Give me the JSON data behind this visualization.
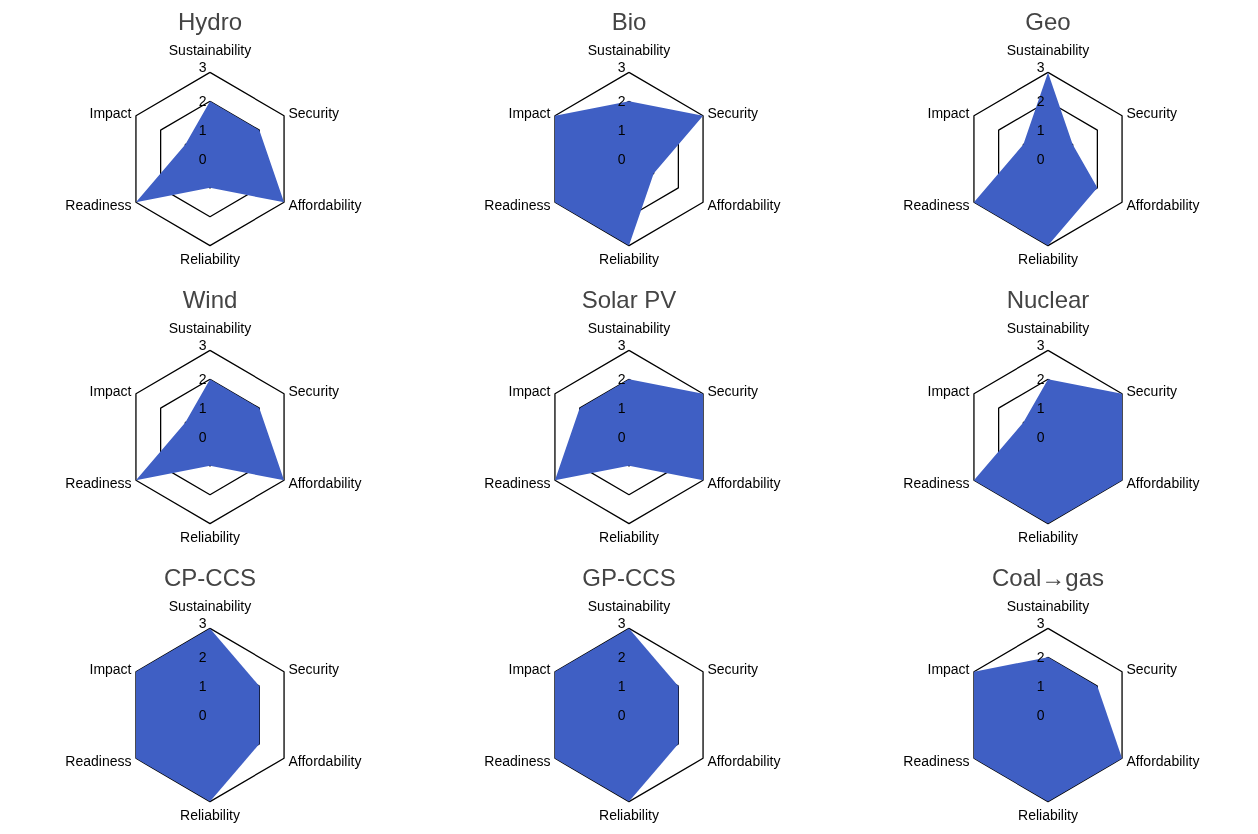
{
  "chart_data": [
    {
      "type": "radar",
      "title": "Hydro",
      "categories": [
        "Sustainability",
        "Security",
        "Affordability",
        "Reliability",
        "Readiness",
        "Impact"
      ],
      "ylim": [
        0,
        3
      ],
      "yticks": [
        0,
        1,
        2,
        3
      ],
      "grid": true,
      "series": [
        {
          "color": "#3f5fc4",
          "values": [
            2,
            2,
            3,
            1,
            3,
            1
          ]
        }
      ]
    },
    {
      "type": "radar",
      "title": "Bio",
      "categories": [
        "Sustainability",
        "Security",
        "Affordability",
        "Reliability",
        "Readiness",
        "Impact"
      ],
      "ylim": [
        0,
        3
      ],
      "yticks": [
        0,
        1,
        2,
        3
      ],
      "grid": true,
      "series": [
        {
          "color": "#3f5fc4",
          "values": [
            2,
            3,
            1,
            3,
            3,
            3
          ]
        }
      ]
    },
    {
      "type": "radar",
      "title": "Geo",
      "categories": [
        "Sustainability",
        "Security",
        "Affordability",
        "Reliability",
        "Readiness",
        "Impact"
      ],
      "ylim": [
        0,
        3
      ],
      "yticks": [
        0,
        1,
        2,
        3
      ],
      "grid": true,
      "series": [
        {
          "color": "#3f5fc4",
          "values": [
            3,
            1,
            2,
            3,
            3,
            1
          ]
        }
      ]
    },
    {
      "type": "radar",
      "title": "Wind",
      "categories": [
        "Sustainability",
        "Security",
        "Affordability",
        "Reliability",
        "Readiness",
        "Impact"
      ],
      "ylim": [
        0,
        3
      ],
      "yticks": [
        0,
        1,
        2,
        3
      ],
      "grid": true,
      "series": [
        {
          "color": "#3f5fc4",
          "values": [
            2,
            2,
            3,
            1,
            3,
            1
          ]
        }
      ]
    },
    {
      "type": "radar",
      "title": "Solar PV",
      "categories": [
        "Sustainability",
        "Security",
        "Affordability",
        "Reliability",
        "Readiness",
        "Impact"
      ],
      "ylim": [
        0,
        3
      ],
      "yticks": [
        0,
        1,
        2,
        3
      ],
      "grid": true,
      "series": [
        {
          "color": "#3f5fc4",
          "values": [
            2,
            3,
            3,
            1,
            3,
            2
          ]
        }
      ]
    },
    {
      "type": "radar",
      "title": "Nuclear",
      "categories": [
        "Sustainability",
        "Security",
        "Affordability",
        "Reliability",
        "Readiness",
        "Impact"
      ],
      "ylim": [
        0,
        3
      ],
      "yticks": [
        0,
        1,
        2,
        3
      ],
      "grid": true,
      "series": [
        {
          "color": "#3f5fc4",
          "values": [
            2,
            3,
            3,
            3,
            3,
            1
          ]
        }
      ]
    },
    {
      "type": "radar",
      "title": "CP-CCS",
      "categories": [
        "Sustainability",
        "Security",
        "Affordability",
        "Reliability",
        "Readiness",
        "Impact"
      ],
      "ylim": [
        0,
        3
      ],
      "yticks": [
        0,
        1,
        2,
        3
      ],
      "grid": true,
      "series": [
        {
          "color": "#3f5fc4",
          "values": [
            3,
            2,
            2,
            3,
            3,
            3
          ]
        }
      ]
    },
    {
      "type": "radar",
      "title": "GP-CCS",
      "categories": [
        "Sustainability",
        "Security",
        "Affordability",
        "Reliability",
        "Readiness",
        "Impact"
      ],
      "ylim": [
        0,
        3
      ],
      "yticks": [
        0,
        1,
        2,
        3
      ],
      "grid": true,
      "series": [
        {
          "color": "#3f5fc4",
          "values": [
            3,
            2,
            2,
            3,
            3,
            3
          ]
        }
      ]
    },
    {
      "type": "radar",
      "title": "Coal→gas",
      "categories": [
        "Sustainability",
        "Security",
        "Affordability",
        "Reliability",
        "Readiness",
        "Impact"
      ],
      "ylim": [
        0,
        3
      ],
      "yticks": [
        0,
        1,
        2,
        3
      ],
      "grid": true,
      "series": [
        {
          "color": "#3f5fc4",
          "values": [
            2,
            2,
            3,
            3,
            3,
            3
          ]
        }
      ]
    }
  ]
}
